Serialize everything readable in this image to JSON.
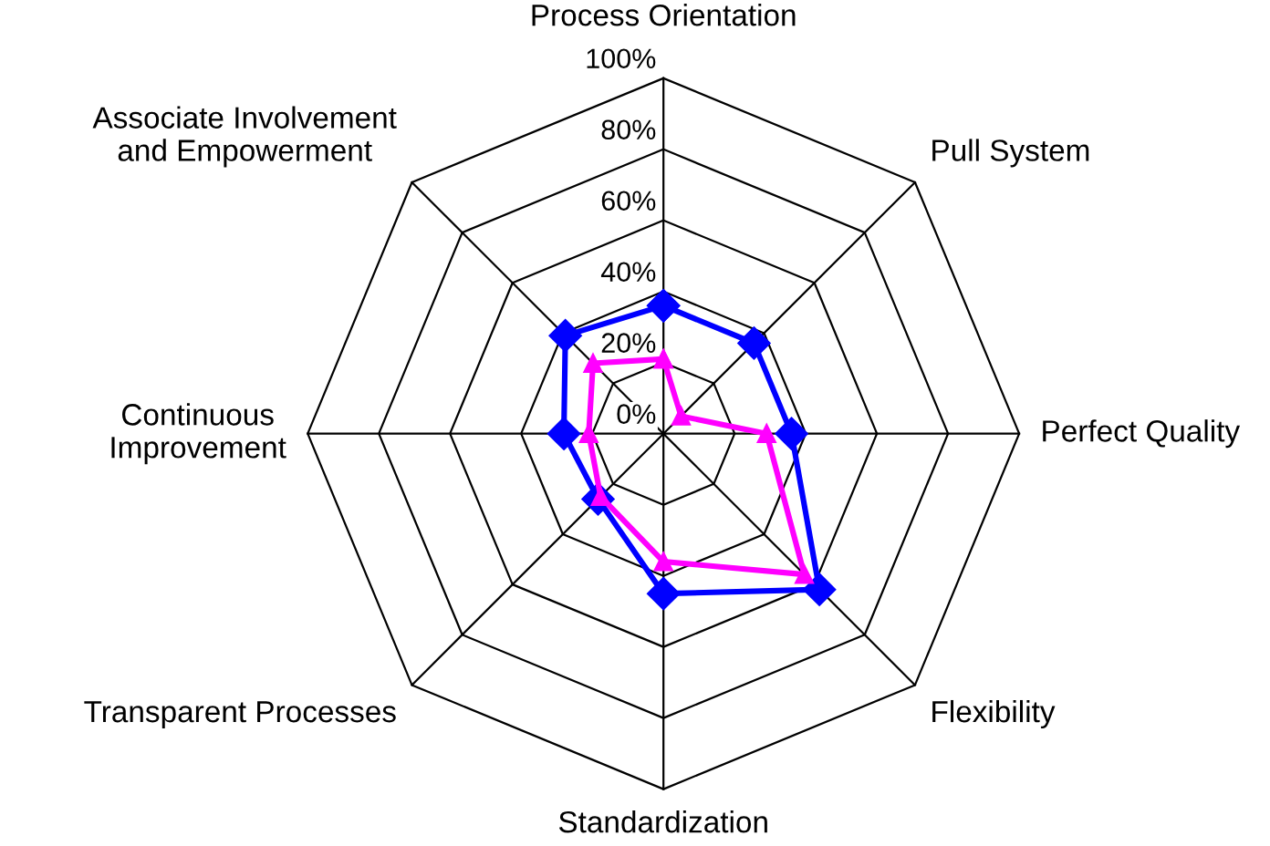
{
  "chart_data": {
    "type": "radar",
    "categories": [
      "Process Orientation",
      "Pull System",
      "Perfect Quality",
      "Flexibility",
      "Standardization",
      "Transparent Processes",
      "Continuous\nImprovement",
      "Associate Involvement\nand Empowerment"
    ],
    "series": [
      {
        "color": "#0000ff",
        "marker": "diamond",
        "values": [
          36,
          36,
          36,
          62,
          45,
          26,
          28,
          39
        ]
      },
      {
        "color": "#ff00ff",
        "marker": "triangle",
        "values": [
          21,
          7,
          29,
          56,
          36,
          25,
          21,
          28
        ]
      }
    ],
    "ylim": [
      0,
      100
    ],
    "yticks": [
      {
        "value": 0,
        "label": "0%"
      },
      {
        "value": 20,
        "label": "20%"
      },
      {
        "value": 40,
        "label": "40%"
      },
      {
        "value": 60,
        "label": "60%"
      },
      {
        "value": 80,
        "label": "80%"
      },
      {
        "value": 100,
        "label": "100%"
      }
    ],
    "grid": true,
    "legend": false
  }
}
